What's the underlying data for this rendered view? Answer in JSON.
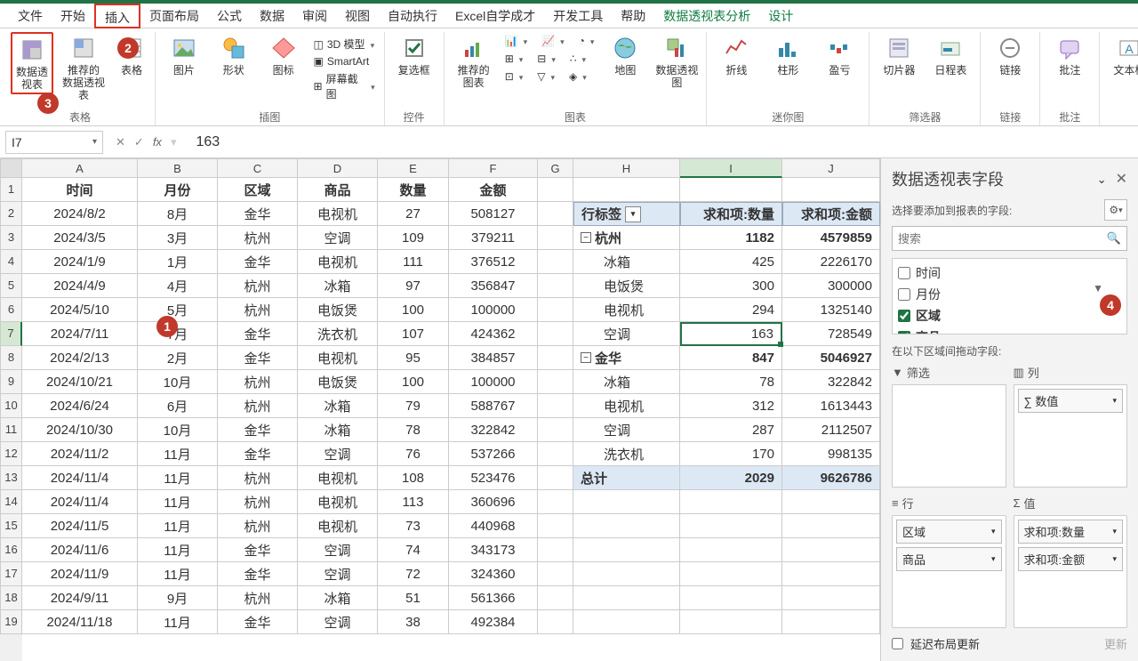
{
  "tabs": [
    "文件",
    "开始",
    "插入",
    "页面布局",
    "公式",
    "数据",
    "审阅",
    "视图",
    "自动执行",
    "Excel自学成才",
    "开发工具",
    "帮助",
    "数据透视表分析",
    "设计"
  ],
  "active_tab": 2,
  "ribbon_groups": {
    "tables": {
      "label": "表格",
      "pivot": "数据透视表",
      "recommend": "推荐的\n数据透视表",
      "table": "表格"
    },
    "illustrations": {
      "label": "插图",
      "picture": "图片",
      "shapes": "形状",
      "icons": "图标",
      "model": "3D 模型",
      "smartart": "SmartArt",
      "screenshot": "屏幕截图"
    },
    "controls": {
      "label": "控件",
      "checkbox": "复选框"
    },
    "charts": {
      "label": "图表",
      "recommend": "推荐的\n图表",
      "map": "地图",
      "pivotchart": "数据透视图"
    },
    "sparklines": {
      "label": "迷你图",
      "line": "折线",
      "column": "柱形",
      "winloss": "盈亏"
    },
    "filters": {
      "label": "筛选器",
      "slicer": "切片器",
      "timeline": "日程表"
    },
    "links": {
      "label": "链接",
      "link": "链接"
    },
    "comments": {
      "label": "批注",
      "comment": "批注"
    },
    "text": {
      "label": "",
      "textbox": "文本框"
    }
  },
  "namebox": "I7",
  "formula_value": "163",
  "columns": [
    "A",
    "B",
    "C",
    "D",
    "E",
    "F",
    "G",
    "H",
    "I",
    "J"
  ],
  "headers": {
    "A": "时间",
    "B": "月份",
    "C": "区域",
    "D": "商品",
    "E": "数量",
    "F": "金额"
  },
  "data": [
    [
      "2024/8/2",
      "8月",
      "金华",
      "电视机",
      "27",
      "508127"
    ],
    [
      "2024/3/5",
      "3月",
      "杭州",
      "空调",
      "109",
      "379211"
    ],
    [
      "2024/1/9",
      "1月",
      "金华",
      "电视机",
      "111",
      "376512"
    ],
    [
      "2024/4/9",
      "4月",
      "杭州",
      "冰箱",
      "97",
      "356847"
    ],
    [
      "2024/5/10",
      "5月",
      "杭州",
      "电饭煲",
      "100",
      "100000"
    ],
    [
      "2024/7/11",
      "7月",
      "金华",
      "洗衣机",
      "107",
      "424362"
    ],
    [
      "2024/2/13",
      "2月",
      "金华",
      "电视机",
      "95",
      "384857"
    ],
    [
      "2024/10/21",
      "10月",
      "杭州",
      "电饭煲",
      "100",
      "100000"
    ],
    [
      "2024/6/24",
      "6月",
      "杭州",
      "冰箱",
      "79",
      "588767"
    ],
    [
      "2024/10/30",
      "10月",
      "金华",
      "冰箱",
      "78",
      "322842"
    ],
    [
      "2024/11/2",
      "11月",
      "金华",
      "空调",
      "76",
      "537266"
    ],
    [
      "2024/11/4",
      "11月",
      "杭州",
      "电视机",
      "108",
      "523476"
    ],
    [
      "2024/11/4",
      "11月",
      "杭州",
      "电视机",
      "113",
      "360696"
    ],
    [
      "2024/11/5",
      "11月",
      "杭州",
      "电视机",
      "73",
      "440968"
    ],
    [
      "2024/11/6",
      "11月",
      "金华",
      "空调",
      "74",
      "343173"
    ],
    [
      "2024/11/9",
      "11月",
      "金华",
      "空调",
      "72",
      "324360"
    ],
    [
      "2024/9/11",
      "9月",
      "杭州",
      "冰箱",
      "51",
      "561366"
    ],
    [
      "2024/11/18",
      "11月",
      "金华",
      "空调",
      "38",
      "492384"
    ]
  ],
  "pivot": {
    "row_label": "行标签",
    "sum_qty": "求和项:数量",
    "sum_amt": "求和项:金额",
    "rows": [
      {
        "t": "grp",
        "label": "杭州",
        "qty": "1182",
        "amt": "4579859"
      },
      {
        "t": "itm",
        "label": "冰箱",
        "qty": "425",
        "amt": "2226170"
      },
      {
        "t": "itm",
        "label": "电饭煲",
        "qty": "300",
        "amt": "300000"
      },
      {
        "t": "itm",
        "label": "电视机",
        "qty": "294",
        "amt": "1325140"
      },
      {
        "t": "itm",
        "label": "空调",
        "qty": "163",
        "amt": "728549",
        "sel": true
      },
      {
        "t": "grp",
        "label": "金华",
        "qty": "847",
        "amt": "5046927"
      },
      {
        "t": "itm",
        "label": "冰箱",
        "qty": "78",
        "amt": "322842"
      },
      {
        "t": "itm",
        "label": "电视机",
        "qty": "312",
        "amt": "1613443"
      },
      {
        "t": "itm",
        "label": "空调",
        "qty": "287",
        "amt": "2112507"
      },
      {
        "t": "itm",
        "label": "洗衣机",
        "qty": "170",
        "amt": "998135"
      },
      {
        "t": "tot",
        "label": "总计",
        "qty": "2029",
        "amt": "9626786"
      }
    ]
  },
  "pane": {
    "title": "数据透视表字段",
    "subtitle": "选择要添加到报表的字段:",
    "search": "搜索",
    "fields": [
      {
        "label": "时间",
        "checked": false
      },
      {
        "label": "月份",
        "checked": false
      },
      {
        "label": "区域",
        "checked": true
      },
      {
        "label": "商品",
        "checked": true
      }
    ],
    "areas_label": "在以下区域间拖动字段:",
    "filter": "筛选",
    "columns": "列",
    "rows": "行",
    "values": "值",
    "col_items": [
      "∑ 数值"
    ],
    "row_items": [
      "区域",
      "商品"
    ],
    "val_items": [
      "求和项:数量",
      "求和项:金额"
    ],
    "defer": "延迟布局更新",
    "update": "更新"
  },
  "callouts": {
    "1": "1",
    "2": "2",
    "3": "3",
    "4": "4"
  },
  "colors": {
    "accent": "#217346",
    "highlight": "#e03020",
    "callout_bg": "#c0392b",
    "pivot_hdr": "#dde8f5"
  }
}
